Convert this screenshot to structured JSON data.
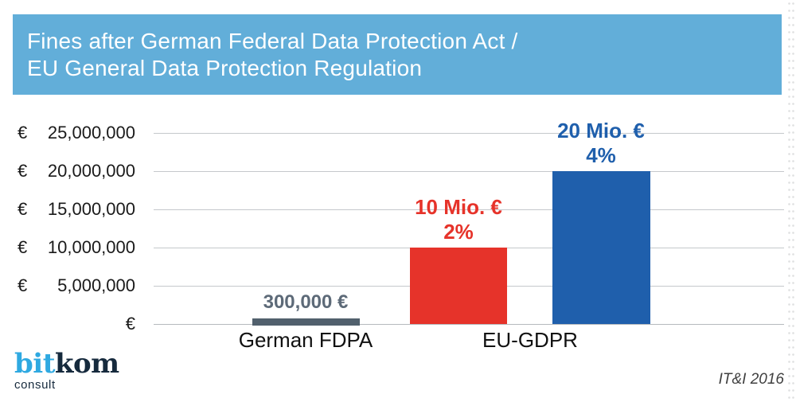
{
  "header": {
    "title_line1": "Fines after German Federal Data Protection Act /",
    "title_line2": "EU General Data Protection Regulation",
    "bg_color": "#62aed9",
    "text_color": "#ffffff"
  },
  "chart_data": {
    "type": "bar",
    "title": "Fines after German Federal Data Protection Act / EU General Data Protection Regulation",
    "ylim": [
      0,
      25000000
    ],
    "grid": true,
    "y_ticks": [
      {
        "prefix": "€",
        "label": "25,000,000",
        "value": 25000000
      },
      {
        "prefix": "€",
        "label": "20,000,000",
        "value": 20000000
      },
      {
        "prefix": "€",
        "label": "15,000,000",
        "value": 15000000
      },
      {
        "prefix": "€",
        "label": "10,000,000",
        "value": 10000000
      },
      {
        "prefix": "€",
        "label": "5,000,000",
        "value": 5000000
      },
      {
        "prefix": "",
        "label": "€",
        "value": 0
      }
    ],
    "bars": [
      {
        "category": "German FDPA",
        "value": 300000,
        "label": "300,000 €",
        "percent": "",
        "color": "#51606d",
        "label_color": "#5d6a78"
      },
      {
        "category": "EU-GDPR",
        "value": 10000000,
        "label": "10 Mio. €",
        "percent": "2%",
        "color": "#e6332a",
        "label_color": "#e6332a"
      },
      {
        "category": "EU-GDPR",
        "value": 20000000,
        "label": "20 Mio. €",
        "percent": "4%",
        "color": "#1f5fac",
        "label_color": "#1f5fac"
      }
    ],
    "x_labels": [
      "German FDPA",
      "EU-GDPR"
    ]
  },
  "footer": {
    "logo_part_blue": "bit",
    "logo_part_dark": "kom",
    "logo_subtext": "consult",
    "logo_blue_color": "#2fa9e1",
    "logo_dark_color": "#162a3d",
    "source": "IT&I 2016"
  }
}
